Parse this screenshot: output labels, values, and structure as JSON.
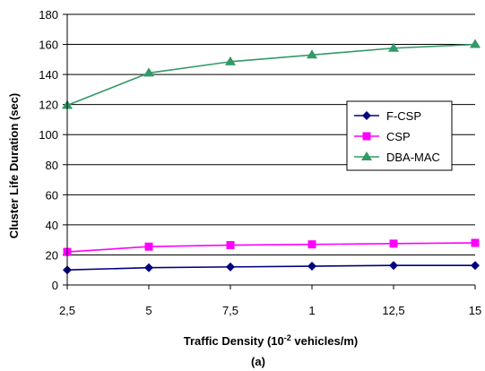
{
  "chart_data": {
    "type": "line",
    "categories": [
      "2,5",
      "5",
      "7,5",
      "1",
      "12,5",
      "15"
    ],
    "series": [
      {
        "name": "F-CSP",
        "values": [
          10,
          11.5,
          12,
          12.5,
          13,
          13
        ],
        "color": "#000080",
        "marker": "diamond"
      },
      {
        "name": "CSP",
        "values": [
          22,
          25.5,
          26.5,
          27,
          27.5,
          28
        ],
        "color": "#ff00ff",
        "marker": "square"
      },
      {
        "name": "DBA-MAC",
        "values": [
          119.5,
          141,
          148.5,
          153,
          157.5,
          160
        ],
        "color": "#339966",
        "marker": "triangle"
      }
    ],
    "xlabel": "Traffic Density (10",
    "xlabel_sup": "-2",
    "xlabel_suffix": " vehicles/m)",
    "ylabel": "Cluster Life Duration (sec)",
    "ylim": [
      0,
      180
    ],
    "yticks": [
      0,
      20,
      40,
      60,
      80,
      100,
      120,
      140,
      160,
      180
    ],
    "grid": true,
    "legend_position": "right",
    "caption": "(a)"
  }
}
